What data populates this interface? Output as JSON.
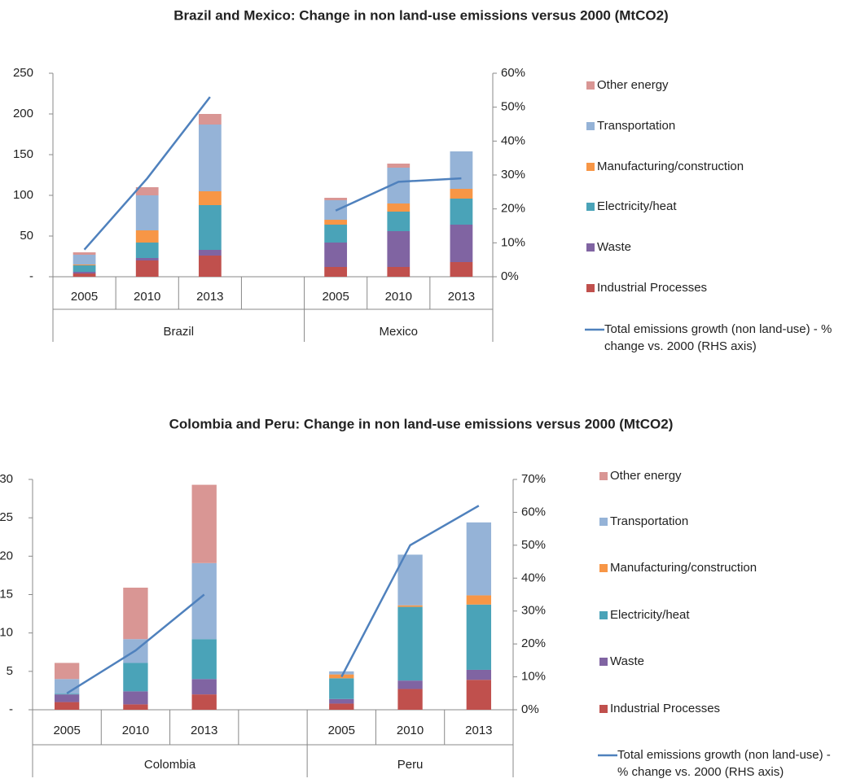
{
  "chart_data": [
    {
      "type": "bar",
      "stacked": true,
      "title": "Brazil and Mexico: Change in non land-use emissions versus 2000 (MtCO2)",
      "categories": [
        "2005",
        "2010",
        "2013",
        null,
        "2005",
        "2010",
        "2013"
      ],
      "groups": [
        "Brazil",
        "Mexico"
      ],
      "series": [
        {
          "name": "Industrial Processes",
          "color": "#c0504d",
          "values": [
            4,
            20,
            26,
            null,
            12,
            12,
            18
          ]
        },
        {
          "name": "Waste",
          "color": "#8064a2",
          "values": [
            2,
            3,
            7,
            null,
            30,
            44,
            46
          ]
        },
        {
          "name": "Electricity/heat",
          "color": "#4aa3b8",
          "values": [
            8,
            19,
            55,
            null,
            22,
            24,
            32
          ]
        },
        {
          "name": "Manufacturing/construction",
          "color": "#f79646",
          "values": [
            1,
            15,
            17,
            null,
            6,
            10,
            12
          ]
        },
        {
          "name": "Transportation",
          "color": "#95b3d7",
          "values": [
            12,
            43,
            82,
            null,
            24,
            44,
            46
          ]
        },
        {
          "name": "Other energy",
          "color": "#d99694",
          "values": [
            3,
            10,
            13,
            null,
            3,
            5,
            0
          ]
        },
        {
          "name": "Total emissions growth (non land-use) - % change vs. 2000 (RHS axis)",
          "type": "line",
          "axis": "y2",
          "color": "#4f81bd",
          "values": [
            8,
            29,
            53,
            null,
            19.5,
            28,
            29
          ]
        }
      ],
      "ylim": [
        0,
        250
      ],
      "yticks": [
        {
          "value": 0,
          "label": "-"
        },
        50,
        100,
        150,
        200,
        250
      ],
      "y2lim": [
        0,
        60
      ],
      "y2ticks": [
        {
          "value": 0,
          "label": "0%"
        },
        {
          "value": 10,
          "label": "10%"
        },
        {
          "value": 20,
          "label": "20%"
        },
        {
          "value": 30,
          "label": "30%"
        },
        {
          "value": 40,
          "label": "40%"
        },
        {
          "value": 50,
          "label": "50%"
        },
        {
          "value": 60,
          "label": "60%"
        }
      ],
      "legend": "right"
    },
    {
      "type": "bar",
      "stacked": true,
      "title": "Colombia and Peru: Change in non land-use emissions versus 2000 (MtCO2)",
      "categories": [
        "2005",
        "2010",
        "2013",
        null,
        "2005",
        "2010",
        "2013"
      ],
      "groups": [
        "Colombia",
        "Peru"
      ],
      "series": [
        {
          "name": "Industrial Processes",
          "color": "#c0504d",
          "values": [
            1.0,
            0.7,
            2.0,
            null,
            0.8,
            2.7,
            3.9
          ]
        },
        {
          "name": "Waste",
          "color": "#8064a2",
          "values": [
            1.0,
            1.7,
            2.0,
            null,
            0.6,
            1.1,
            1.3
          ]
        },
        {
          "name": "Electricity/heat",
          "color": "#4aa3b8",
          "values": [
            0.1,
            3.7,
            5.2,
            null,
            2.7,
            9.6,
            8.5
          ]
        },
        {
          "name": "Manufacturing/construction",
          "color": "#f79646",
          "values": [
            0,
            0,
            0,
            null,
            0.5,
            0.2,
            1.2
          ]
        },
        {
          "name": "Transportation",
          "color": "#95b3d7",
          "values": [
            1.9,
            3.1,
            9.9,
            null,
            0.4,
            6.6,
            9.5
          ]
        },
        {
          "name": "Other energy",
          "color": "#d99694",
          "values": [
            2.1,
            6.7,
            10.2,
            null,
            0,
            0,
            0
          ]
        },
        {
          "name": "Total emissions growth (non land-use) - % change vs. 2000 (RHS axis)",
          "type": "line",
          "axis": "y2",
          "color": "#4f81bd",
          "values": [
            5,
            18,
            35,
            null,
            10,
            50,
            62
          ]
        }
      ],
      "ylim": [
        0,
        30
      ],
      "yticks": [
        {
          "value": 0,
          "label": "-"
        },
        5,
        10,
        15,
        20,
        25,
        30
      ],
      "y2lim": [
        0,
        70
      ],
      "y2ticks": [
        {
          "value": 0,
          "label": "0%"
        },
        {
          "value": 10,
          "label": "10%"
        },
        {
          "value": 20,
          "label": "20%"
        },
        {
          "value": 30,
          "label": "30%"
        },
        {
          "value": 40,
          "label": "40%"
        },
        {
          "value": 50,
          "label": "50%"
        },
        {
          "value": 60,
          "label": "60%"
        },
        {
          "value": 70,
          "label": "70%"
        }
      ],
      "legend": "right"
    }
  ]
}
